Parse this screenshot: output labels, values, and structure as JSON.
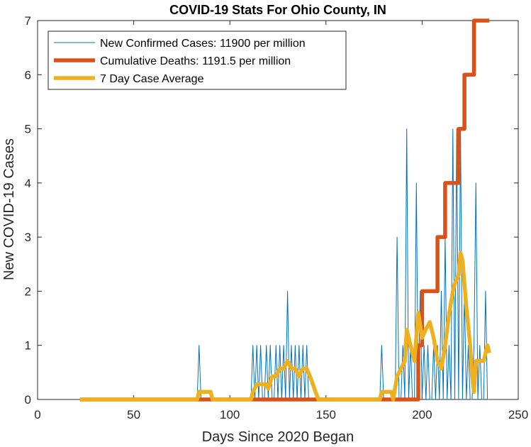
{
  "chart_data": {
    "type": "line",
    "title": "COVID-19 Stats For Ohio County, IN",
    "xlabel": "Days Since 2020 Began",
    "ylabel": "New COVID-19 Cases",
    "xlim": [
      0,
      250
    ],
    "ylim": [
      0,
      7
    ],
    "xticks": [
      0,
      50,
      100,
      150,
      200,
      250
    ],
    "yticks": [
      0,
      1,
      2,
      3,
      4,
      5,
      6,
      7
    ],
    "grid": false,
    "legend_position": "top-left",
    "series": [
      {
        "name": "New Confirmed Cases: 11900 per million",
        "color": "#0072BD",
        "style": "thin",
        "points": [
          [
            22,
            0
          ],
          [
            83,
            0
          ],
          [
            84,
            1
          ],
          [
            85,
            0
          ],
          [
            111,
            0
          ],
          [
            112,
            1
          ],
          [
            113,
            0
          ],
          [
            114,
            1
          ],
          [
            115,
            0
          ],
          [
            116,
            1
          ],
          [
            117,
            0
          ],
          [
            118,
            0
          ],
          [
            119,
            1
          ],
          [
            120,
            0
          ],
          [
            121,
            1
          ],
          [
            122,
            0
          ],
          [
            123,
            0
          ],
          [
            124,
            1
          ],
          [
            125,
            0
          ],
          [
            126,
            1
          ],
          [
            127,
            0
          ],
          [
            128,
            1
          ],
          [
            129,
            0
          ],
          [
            130,
            2
          ],
          [
            131,
            0
          ],
          [
            132,
            1
          ],
          [
            133,
            0
          ],
          [
            134,
            1
          ],
          [
            135,
            0
          ],
          [
            136,
            1
          ],
          [
            137,
            0
          ],
          [
            138,
            1
          ],
          [
            139,
            0
          ],
          [
            140,
            1
          ],
          [
            141,
            0
          ],
          [
            142,
            0
          ],
          [
            178,
            0
          ],
          [
            179,
            1
          ],
          [
            180,
            0
          ],
          [
            186,
            0
          ],
          [
            187,
            3
          ],
          [
            188,
            0
          ],
          [
            189,
            0
          ],
          [
            190,
            1
          ],
          [
            191,
            0
          ],
          [
            192,
            5
          ],
          [
            193,
            0
          ],
          [
            194,
            1
          ],
          [
            195,
            0
          ],
          [
            196,
            0
          ],
          [
            197,
            4
          ],
          [
            198,
            0
          ],
          [
            199,
            2
          ],
          [
            200,
            0
          ],
          [
            201,
            1
          ],
          [
            202,
            0
          ],
          [
            203,
            1
          ],
          [
            204,
            0
          ],
          [
            205,
            0
          ],
          [
            206,
            1
          ],
          [
            207,
            0
          ],
          [
            208,
            1
          ],
          [
            209,
            0
          ],
          [
            210,
            2
          ],
          [
            211,
            0
          ],
          [
            212,
            3
          ],
          [
            213,
            0
          ],
          [
            214,
            1
          ],
          [
            215,
            0
          ],
          [
            216,
            5
          ],
          [
            217,
            0
          ],
          [
            218,
            5
          ],
          [
            219,
            0
          ],
          [
            220,
            5
          ],
          [
            221,
            0
          ],
          [
            222,
            2
          ],
          [
            223,
            0
          ],
          [
            224,
            1
          ],
          [
            225,
            0
          ],
          [
            226,
            0
          ],
          [
            227,
            1
          ],
          [
            228,
            4
          ],
          [
            229,
            0
          ],
          [
            230,
            1
          ],
          [
            231,
            0
          ],
          [
            232,
            0
          ],
          [
            233,
            2
          ],
          [
            234,
            0
          ],
          [
            235,
            0
          ]
        ]
      },
      {
        "name": "Cumulative Deaths: 1191.5 per million",
        "color": "#D95319",
        "style": "thick",
        "points": [
          [
            22,
            0
          ],
          [
            198,
            0
          ],
          [
            198,
            1
          ],
          [
            200,
            1
          ],
          [
            200,
            2
          ],
          [
            208,
            2
          ],
          [
            208,
            3
          ],
          [
            212,
            3
          ],
          [
            212,
            4
          ],
          [
            219,
            4
          ],
          [
            219,
            5
          ],
          [
            222,
            5
          ],
          [
            222,
            6
          ],
          [
            227,
            6
          ],
          [
            227,
            7
          ],
          [
            235,
            7
          ]
        ]
      },
      {
        "name": "7 Day Case Average",
        "color": "#EDB120",
        "style": "thick",
        "points": [
          [
            22,
            0
          ],
          [
            83,
            0
          ],
          [
            84,
            0.14
          ],
          [
            90,
            0.14
          ],
          [
            91,
            0
          ],
          [
            111,
            0
          ],
          [
            112,
            0.14
          ],
          [
            114,
            0.28
          ],
          [
            119,
            0.28
          ],
          [
            120,
            0.2
          ],
          [
            122,
            0.43
          ],
          [
            124,
            0.43
          ],
          [
            126,
            0.57
          ],
          [
            128,
            0.57
          ],
          [
            130,
            0.71
          ],
          [
            132,
            0.57
          ],
          [
            134,
            0.57
          ],
          [
            136,
            0.43
          ],
          [
            138,
            0.57
          ],
          [
            140,
            0.57
          ],
          [
            142,
            0.4
          ],
          [
            144,
            0.2
          ],
          [
            146,
            0
          ],
          [
            178,
            0
          ],
          [
            179,
            0.14
          ],
          [
            184,
            0.14
          ],
          [
            185,
            0
          ],
          [
            187,
            0.43
          ],
          [
            189,
            0.57
          ],
          [
            191,
            0.71
          ],
          [
            192,
            1.29
          ],
          [
            194,
            1.0
          ],
          [
            196,
            0.71
          ],
          [
            198,
            1.6
          ],
          [
            200,
            1.14
          ],
          [
            202,
            1.3
          ],
          [
            204,
            1.43
          ],
          [
            206,
            1.14
          ],
          [
            208,
            0.71
          ],
          [
            210,
            0.57
          ],
          [
            212,
            1.0
          ],
          [
            214,
            1.57
          ],
          [
            216,
            2.0
          ],
          [
            217,
            2.14
          ],
          [
            219,
            2.3
          ],
          [
            220,
            2.71
          ],
          [
            221,
            2.57
          ],
          [
            223,
            1.71
          ],
          [
            225,
            1.0
          ],
          [
            226,
            0.43
          ],
          [
            227,
            0.14
          ],
          [
            228,
            0.71
          ],
          [
            230,
            0.71
          ],
          [
            232,
            0.71
          ],
          [
            234,
            1.0
          ],
          [
            235,
            0.86
          ]
        ]
      }
    ]
  }
}
